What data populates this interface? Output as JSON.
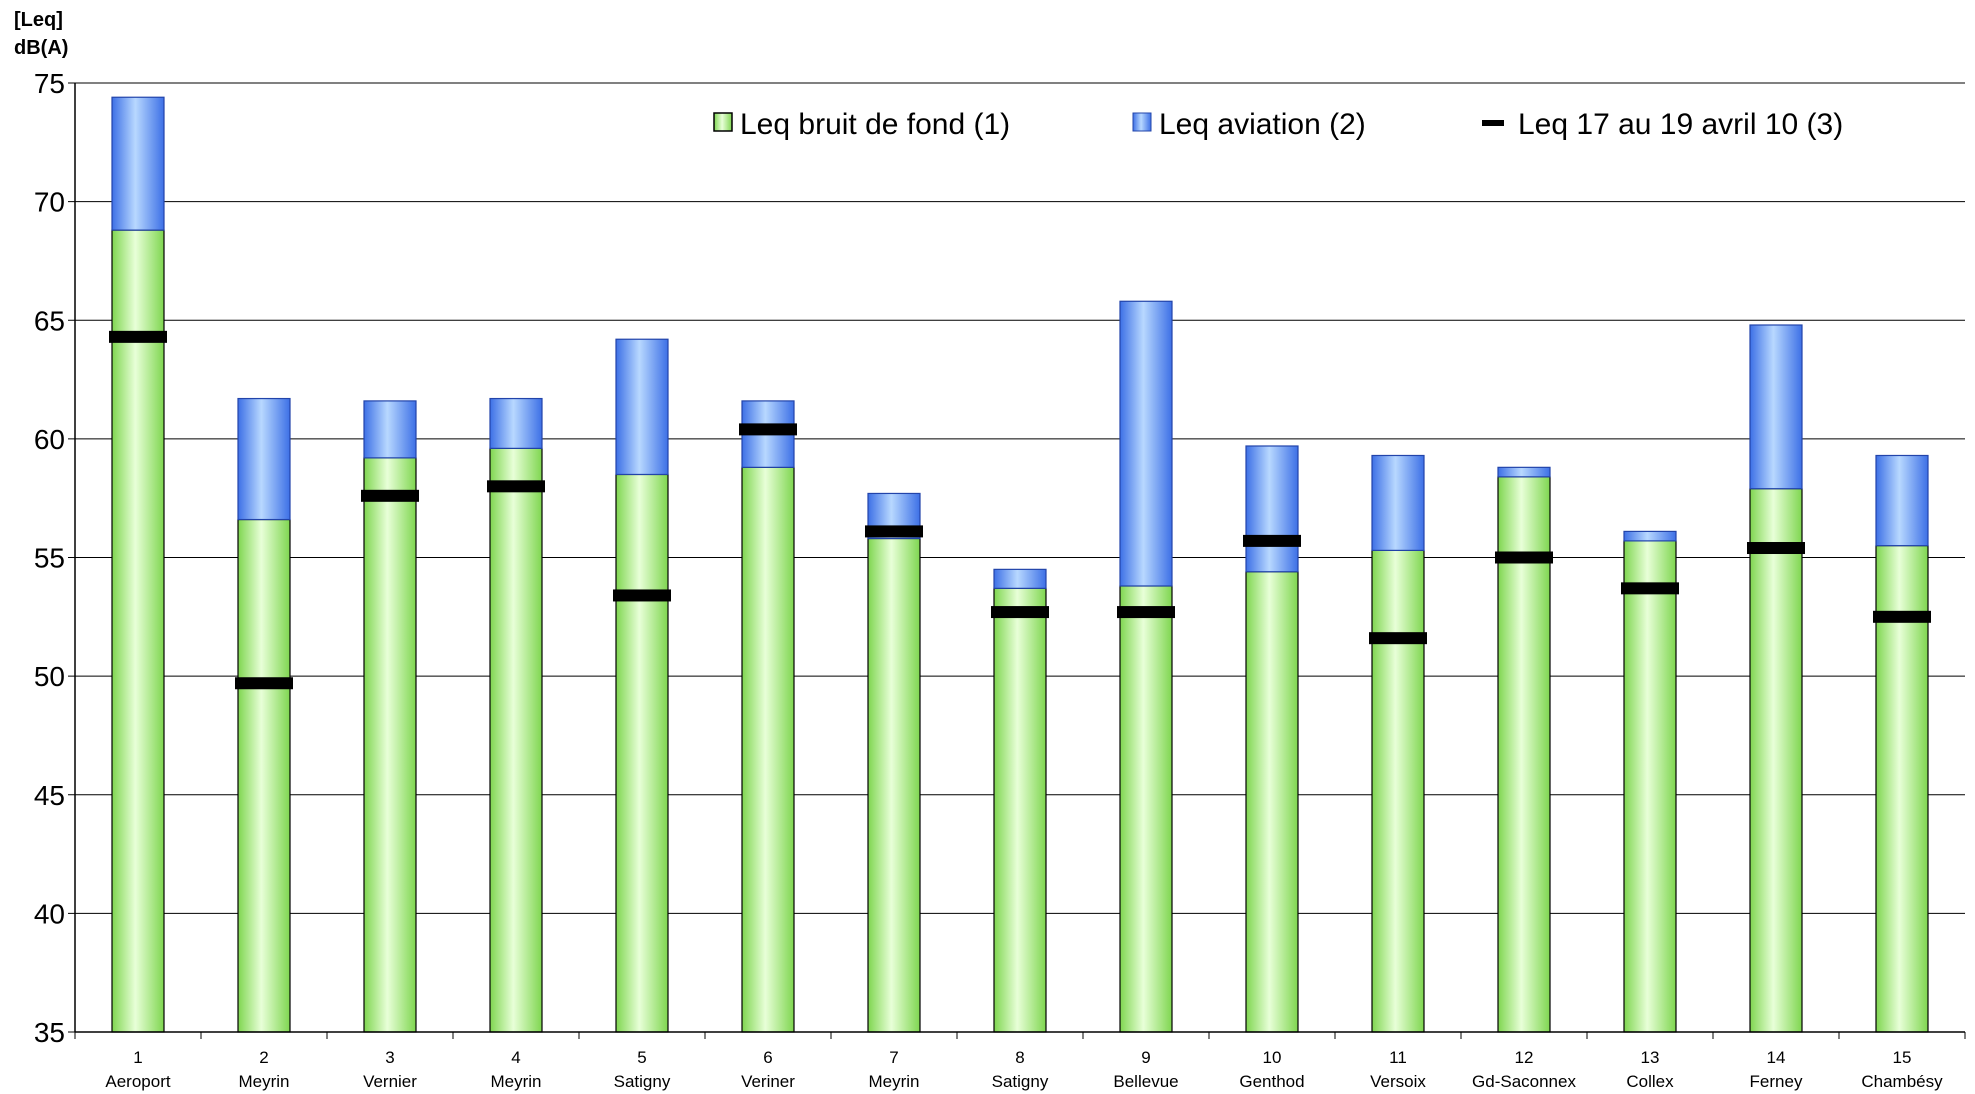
{
  "chart_data": {
    "type": "bar",
    "ylabel_line1": "[Leq]",
    "ylabel_line2": "dB(A)",
    "ylim": [
      35,
      75
    ],
    "yticks": [
      35,
      40,
      45,
      50,
      55,
      60,
      65,
      70,
      75
    ],
    "grid": true,
    "legend_position": "top-right",
    "categories": [
      {
        "num": "1",
        "name": "Aeroport"
      },
      {
        "num": "2",
        "name": "Meyrin"
      },
      {
        "num": "3",
        "name": "Vernier"
      },
      {
        "num": "4",
        "name": "Meyrin"
      },
      {
        "num": "5",
        "name": "Satigny"
      },
      {
        "num": "6",
        "name": "Veriner"
      },
      {
        "num": "7",
        "name": "Meyrin"
      },
      {
        "num": "8",
        "name": "Satigny"
      },
      {
        "num": "9",
        "name": "Bellevue"
      },
      {
        "num": "10",
        "name": "Genthod"
      },
      {
        "num": "11",
        "name": "Versoix"
      },
      {
        "num": "12",
        "name": "Gd-Saconnex"
      },
      {
        "num": "13",
        "name": "Collex"
      },
      {
        "num": "14",
        "name": "Ferney"
      },
      {
        "num": "15",
        "name": "Chambésy"
      }
    ],
    "series": [
      {
        "name": "Leq bruit de fond (1)",
        "kind": "bar",
        "color": "#99ee66",
        "values": [
          68.8,
          56.6,
          59.2,
          59.6,
          58.5,
          58.8,
          55.8,
          53.7,
          53.8,
          54.4,
          55.3,
          58.4,
          55.7,
          57.9,
          55.5
        ]
      },
      {
        "name": "Leq aviation (2)",
        "kind": "bar",
        "color": "#5588ee",
        "values": [
          74.4,
          61.7,
          61.6,
          61.7,
          64.2,
          61.6,
          57.7,
          54.5,
          65.8,
          59.7,
          59.3,
          58.8,
          56.1,
          64.8,
          59.3
        ]
      },
      {
        "name": "Leq 17 au 19 avril 10 (3)",
        "kind": "marker",
        "color": "#000000",
        "values": [
          64.3,
          49.7,
          57.6,
          58.0,
          53.4,
          60.4,
          56.1,
          52.7,
          52.7,
          55.7,
          51.6,
          55.0,
          53.7,
          55.4,
          52.5
        ]
      }
    ]
  }
}
